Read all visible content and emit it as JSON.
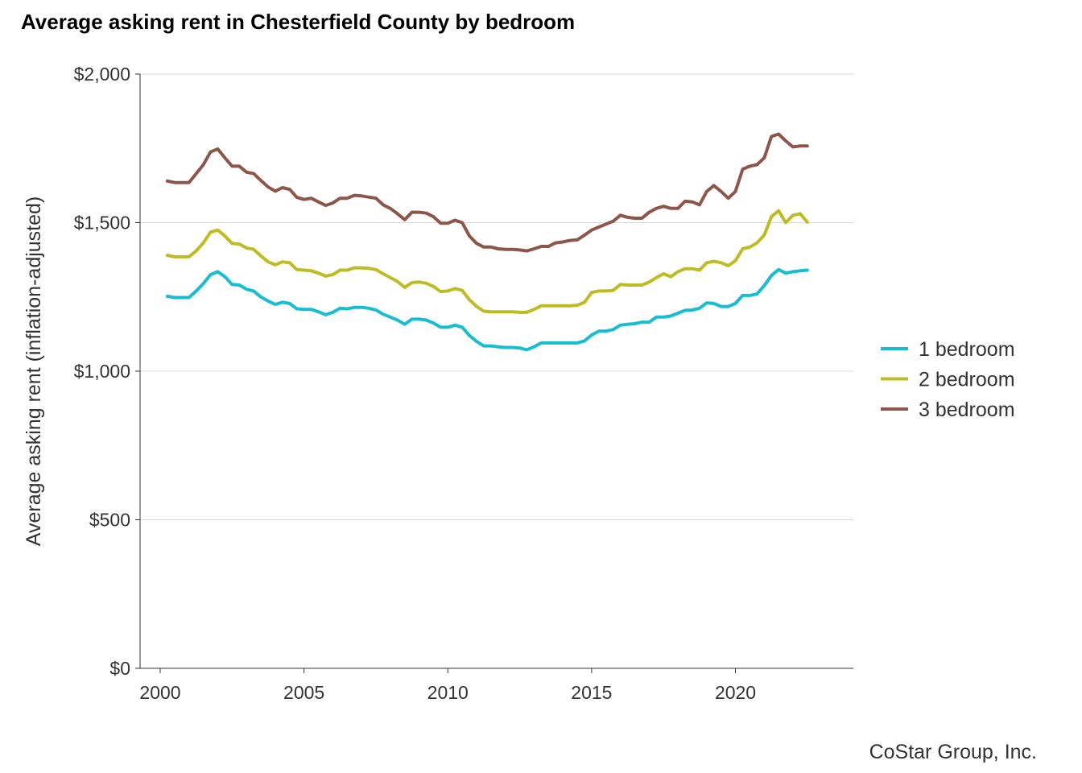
{
  "chart_data": {
    "type": "line",
    "title": "Average asking rent in Chesterfield County by bedroom",
    "xlabel": "",
    "ylabel": "Average asking rent (inflation-adjusted)",
    "source": "CoStar Group, Inc.",
    "xlim": [
      1999.3,
      2024.1
    ],
    "ylim": [
      0,
      2000
    ],
    "x_ticks": [
      2000,
      2005,
      2010,
      2015,
      2020
    ],
    "x_tick_labels": [
      "2000",
      "2005",
      "2010",
      "2015",
      "2020"
    ],
    "y_ticks": [
      0,
      500,
      1000,
      1500,
      2000
    ],
    "y_tick_labels": [
      "$0",
      "$500",
      "$1,000",
      "$1,500",
      "$2,000"
    ],
    "grid": "horizontal major",
    "legend": "right",
    "x": [
      2000.25,
      2000.5,
      2000.75,
      2001.0,
      2001.25,
      2001.5,
      2001.75,
      2002.0,
      2002.25,
      2002.5,
      2002.75,
      2003.0,
      2003.25,
      2003.5,
      2003.75,
      2004.0,
      2004.25,
      2004.5,
      2004.75,
      2005.0,
      2005.25,
      2005.5,
      2005.75,
      2006.0,
      2006.25,
      2006.5,
      2006.75,
      2007.0,
      2007.25,
      2007.5,
      2007.75,
      2008.0,
      2008.25,
      2008.5,
      2008.75,
      2009.0,
      2009.25,
      2009.5,
      2009.75,
      2010.0,
      2010.25,
      2010.5,
      2010.75,
      2011.0,
      2011.25,
      2011.5,
      2011.75,
      2012.0,
      2012.25,
      2012.5,
      2012.75,
      2013.0,
      2013.25,
      2013.5,
      2013.75,
      2014.0,
      2014.25,
      2014.5,
      2014.75,
      2015.0,
      2015.25,
      2015.5,
      2015.75,
      2016.0,
      2016.25,
      2016.5,
      2016.75,
      2017.0,
      2017.25,
      2017.5,
      2017.75,
      2018.0,
      2018.25,
      2018.5,
      2018.75,
      2019.0,
      2019.25,
      2019.5,
      2019.75,
      2020.0,
      2020.25,
      2020.5,
      2020.75,
      2021.0,
      2021.25,
      2021.5,
      2021.75,
      2022.0,
      2022.25,
      2022.5
    ],
    "series": [
      {
        "name": "1 bedroom",
        "color": "#17becf",
        "values": [
          1252,
          1248,
          1248,
          1248,
          1270,
          1295,
          1325,
          1335,
          1318,
          1292,
          1290,
          1276,
          1270,
          1250,
          1236,
          1225,
          1232,
          1228,
          1210,
          1208,
          1208,
          1200,
          1190,
          1198,
          1212,
          1210,
          1215,
          1215,
          1212,
          1206,
          1192,
          1182,
          1172,
          1158,
          1175,
          1175,
          1172,
          1162,
          1148,
          1148,
          1155,
          1148,
          1120,
          1100,
          1085,
          1085,
          1082,
          1080,
          1080,
          1078,
          1072,
          1082,
          1095,
          1095,
          1095,
          1095,
          1095,
          1095,
          1102,
          1122,
          1135,
          1135,
          1140,
          1155,
          1158,
          1160,
          1165,
          1165,
          1182,
          1182,
          1186,
          1195,
          1205,
          1206,
          1212,
          1230,
          1228,
          1218,
          1218,
          1228,
          1255,
          1255,
          1260,
          1288,
          1322,
          1342,
          1330,
          1335,
          1338,
          1340
        ]
      },
      {
        "name": "2 bedroom",
        "color": "#bcbd22",
        "values": [
          1390,
          1385,
          1385,
          1385,
          1405,
          1432,
          1468,
          1475,
          1455,
          1430,
          1428,
          1415,
          1410,
          1388,
          1368,
          1358,
          1368,
          1365,
          1342,
          1340,
          1338,
          1330,
          1320,
          1325,
          1340,
          1340,
          1348,
          1348,
          1346,
          1342,
          1328,
          1315,
          1302,
          1282,
          1298,
          1300,
          1296,
          1285,
          1268,
          1270,
          1278,
          1272,
          1240,
          1218,
          1202,
          1200,
          1200,
          1200,
          1200,
          1198,
          1198,
          1208,
          1220,
          1220,
          1220,
          1220,
          1220,
          1222,
          1232,
          1265,
          1270,
          1270,
          1272,
          1292,
          1290,
          1290,
          1290,
          1300,
          1315,
          1328,
          1318,
          1335,
          1345,
          1345,
          1340,
          1365,
          1370,
          1365,
          1355,
          1372,
          1412,
          1418,
          1432,
          1458,
          1520,
          1540,
          1500,
          1525,
          1530,
          1502
        ]
      },
      {
        "name": "3 bedroom",
        "color": "#8c564b",
        "values": [
          1640,
          1635,
          1635,
          1635,
          1665,
          1695,
          1738,
          1748,
          1718,
          1690,
          1690,
          1670,
          1665,
          1642,
          1620,
          1606,
          1618,
          1612,
          1585,
          1578,
          1582,
          1570,
          1558,
          1566,
          1582,
          1582,
          1592,
          1590,
          1586,
          1582,
          1560,
          1548,
          1530,
          1510,
          1535,
          1535,
          1532,
          1520,
          1498,
          1498,
          1508,
          1500,
          1455,
          1430,
          1418,
          1418,
          1412,
          1410,
          1410,
          1408,
          1405,
          1412,
          1420,
          1420,
          1432,
          1435,
          1440,
          1442,
          1458,
          1475,
          1485,
          1495,
          1505,
          1525,
          1518,
          1515,
          1515,
          1535,
          1548,
          1555,
          1548,
          1548,
          1572,
          1570,
          1560,
          1605,
          1625,
          1605,
          1582,
          1605,
          1680,
          1690,
          1695,
          1718,
          1790,
          1798,
          1775,
          1755,
          1758,
          1758
        ]
      }
    ]
  }
}
